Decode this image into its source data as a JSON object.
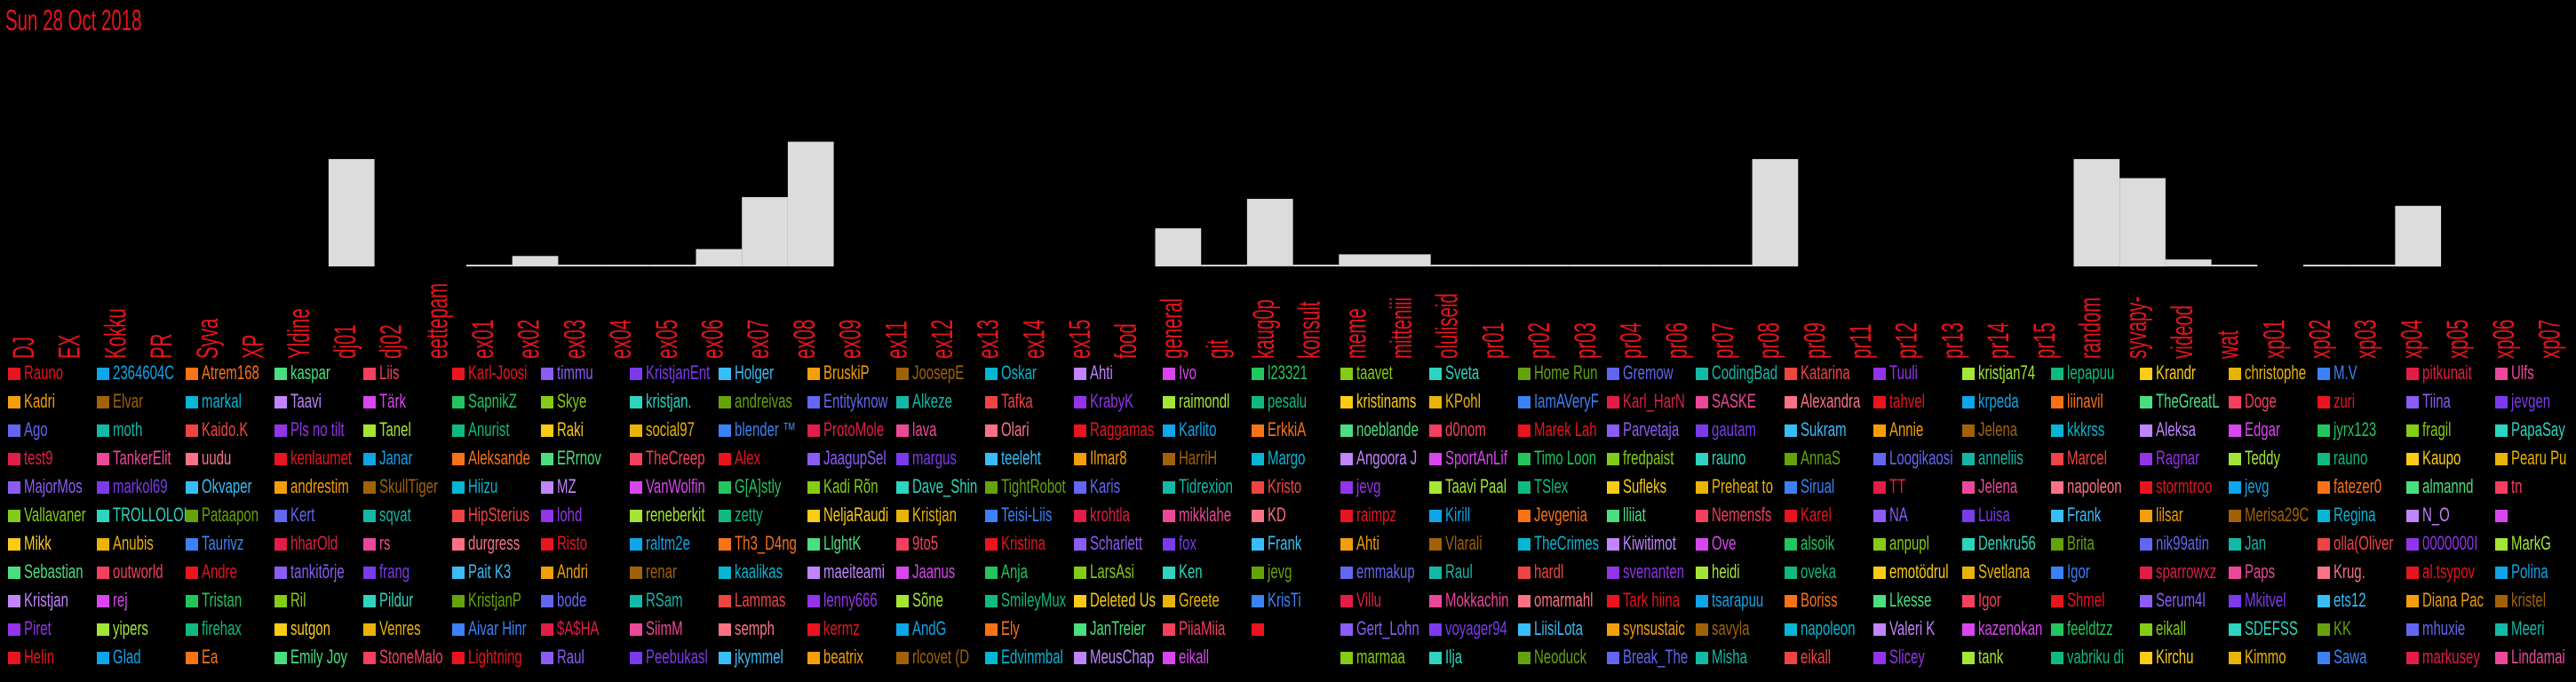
{
  "date_label": "Sun 28 Oct 2018",
  "chart_data": {
    "type": "bar",
    "title": "Sun 28 Oct 2018",
    "xlabel": "",
    "ylabel": "",
    "ylim": [
      0,
      100
    ],
    "grid": false,
    "categories": [
      "DJ",
      "EX",
      "Kokku",
      "PR",
      "Syva",
      "XP",
      "Yldine",
      "dj01",
      "dj02",
      "eettepam",
      "ex01",
      "ex02",
      "ex03",
      "ex04",
      "ex05",
      "ex06",
      "ex07",
      "ex08",
      "ex09",
      "ex11",
      "ex12",
      "ex13",
      "ex14",
      "ex15",
      "food",
      "general",
      "git",
      "kaug0p",
      "konsult",
      "meme",
      "mitteniii",
      "oluliseid",
      "pr01",
      "pr02",
      "pr03",
      "pr04",
      "pr06",
      "pr07",
      "pr08",
      "pr09",
      "pr11",
      "pr12",
      "pr13",
      "pr14",
      "pr15",
      "random",
      "syvapy-",
      "videod",
      "wat",
      "xp01",
      "xp02",
      "xp03",
      "xp04",
      "xp05",
      "xp06",
      "xp07"
    ],
    "values": [
      0,
      0,
      0,
      0,
      0,
      0,
      0,
      62,
      0,
      0,
      1,
      6,
      1,
      1,
      1,
      10,
      40,
      72,
      0,
      0,
      0,
      0,
      0,
      0,
      0,
      22,
      1,
      39,
      1,
      7,
      7,
      1,
      1,
      1,
      1,
      1,
      1,
      1,
      62,
      0,
      0,
      0,
      0,
      0,
      0,
      62,
      51,
      4,
      1,
      0,
      1,
      1,
      35,
      0,
      0,
      0
    ]
  },
  "legend": {
    "colors": [
      "#e8141e",
      "#d946ef",
      "#3b82f6",
      "#f59e0b",
      "#a3e635",
      "#e8141e",
      "#6366f1",
      "#0ea5e9",
      "#22c55e",
      "#e11d48",
      "#a16207",
      "#10b981",
      "#8b5cf6",
      "#14b8a6",
      "#f97316",
      "#84cc16",
      "#ec4899",
      "#06b6d4",
      "#facc15",
      "#7c3aed",
      "#ef4444",
      "#4ade80",
      "#2dd4bf",
      "#fb7185",
      "#c084fc",
      "#eab308",
      "#38bdf8",
      "#9333ea",
      "#f43f5e",
      "#65a30d"
    ],
    "columns": [
      [
        "Rauno",
        "Kadri",
        "Ago",
        "test9",
        "MajorMos",
        "Vallavaner",
        "Mikk",
        "Sebastian",
        "Kristjan",
        "Piret",
        "Helin"
      ],
      [
        "2364604C",
        "Elvar",
        "moth",
        "TankerElit",
        "markol69",
        "TROLLOLOL",
        "Anubis",
        "outworld",
        "rej",
        "yipers",
        "Glad"
      ],
      [
        "Atrem168",
        "markal",
        "Kaido.K",
        "uudu",
        "Okvaper",
        "Pataapon",
        "Taurivz",
        "Andre",
        "Tristan",
        "firehax",
        "Ea"
      ],
      [
        "kaspar",
        "Taavi",
        "Pls no tilt",
        "kenlaumet",
        "andrestim",
        "Kert",
        "hharOld",
        "tankitõrje",
        "Ril",
        "sutgon",
        "Emily Joy"
      ],
      [
        "Liis",
        "Tärk",
        "Tanel",
        "Janar",
        "SkullTiger",
        "sqvat",
        "rs",
        "frang",
        "Pildur",
        "Venres",
        "StoneMalo"
      ],
      [
        "Karl-Joosi",
        "SapnikZ",
        "Anurist",
        "Aleksande",
        "Hiizu",
        "HipSterius",
        "durgress",
        "Pait K3",
        "KristjanP",
        "Aivar Hinr",
        "Lightning"
      ],
      [
        "timmu",
        "Skye",
        "Raki",
        "ERrnov",
        "MZ",
        "lohd",
        "Risto",
        "Andri",
        "bode",
        "$A$HA",
        "Raul"
      ],
      [
        "KristjanEnt",
        "kristjan.",
        "social97",
        "TheCreep",
        "VanWolfin",
        "reneberkit",
        "raltm2e",
        "renar",
        "RSam",
        "SiimM",
        "Peebukasl"
      ],
      [
        "Holger",
        "andreivas",
        "blender ™",
        "Alex",
        "G[A]stly",
        "zetty",
        "Th3_D4ng",
        "kaalikas",
        "Lammas",
        "semph",
        "jkymmel"
      ],
      [
        "BruskiP",
        "Entityknow",
        "ProtoMole",
        "JaagupSel",
        "Kadi Rõn",
        "NeljaRaudi",
        "LlghtK",
        "maeiteami",
        "lenny666",
        "kermz",
        "beatrix"
      ],
      [
        "JoosepE",
        "Alkeze",
        "lava",
        "margus",
        "Dave_Shin",
        "Kristjan",
        "9to5",
        "Jaanus",
        "Sõne",
        "AndG",
        "rlcovet (D"
      ],
      [
        "Oskar",
        "Tafka",
        "Olari",
        "teeleht",
        "TightRobot",
        "Teisi-Liis",
        "Kristina",
        "Anja",
        "SmileyMux",
        "Ely",
        "Edvinmbal"
      ],
      [
        "Ahti",
        "KrabyK",
        "Raggamas",
        "Ilmar8",
        "Karis",
        "krohtla",
        "Scharlett",
        "LarsAsi",
        "Deleted Us",
        "JanTreier",
        "MeusChap"
      ],
      [
        "Ivo",
        "raimondl",
        "Karlito",
        "HarriH",
        "Tidrexion",
        "mikklahe",
        "fox",
        "Ken",
        "Greete",
        "PiiaMiia",
        "eikall"
      ],
      [
        "l23321",
        "pesalu",
        "ErkkiA",
        "Margo",
        "Kristo",
        "KD",
        "Frank",
        "jevg",
        "KrisTi",
        ""
      ],
      [
        "taavet",
        "kristinams",
        "noeblande",
        "Angoora J",
        "jevg",
        "raimpz",
        "Ahti",
        "emmakup",
        "Villu",
        "Gert_Lohn",
        "marmaa"
      ],
      [
        "Sveta",
        "KPohl",
        "d0nom",
        "SportAnLif",
        "Taavi Paal",
        "Kirill",
        "Vlarali",
        "Raul",
        "Mokkachin",
        "voyager94",
        "Ilja"
      ],
      [
        "Home Run",
        "IamAVeryF",
        "Marek Lah",
        "Timo Loon",
        "TSlex",
        "Jevgenia",
        "TheCrimes",
        "hardl",
        "omarmahl",
        "LiisiLota",
        "Neoduck"
      ],
      [
        "Gremow",
        "Karl_HarN",
        "Parvetaja",
        "fredpaist",
        "Sufleks",
        "lliiat",
        "Kiwitimot",
        "svenanten",
        "Tark hiina",
        "synsustaic",
        "Break_The"
      ],
      [
        "CodingBad",
        "SASKE",
        "gautam",
        "rauno",
        "Preheat to",
        "Nemensfs",
        "Ove",
        "heidi",
        "tsarapuu",
        "savyla",
        "Misha"
      ],
      [
        "Katarina",
        "Alexandra",
        "Sukram",
        "AnnaS",
        "Sirual",
        "Karel",
        "alsoik",
        "oveka",
        "Boriss",
        "napoleon",
        "eikall"
      ],
      [
        "Tuuli",
        "tahvel",
        "Annie",
        "Loogikaosi",
        "TT",
        "NA",
        "anpupl",
        "emotödrul",
        "Lkesse",
        "Valeri K",
        "Slicey"
      ],
      [
        "kristjan74",
        "krpeda",
        "Jelena",
        "anneliis",
        "Jelena",
        "Luisa",
        "Denkru56",
        "Svetlana",
        "Igor",
        "kazenokan",
        "tank"
      ],
      [
        "lepapuu",
        "liinavil",
        "kkkrss",
        "Marcel",
        "napoleon",
        "Frank",
        "Brita",
        "Igor",
        "Shmel",
        "feeldtzz",
        "vabriku di"
      ],
      [
        "Krandr",
        "TheGreatL",
        "Aleksa",
        "Ragnar",
        "stormtroo",
        "lilsar",
        "nik99atin",
        "sparrowxz",
        "Serum4l",
        "eikall",
        "Kirchu"
      ],
      [
        "christophe",
        "Doge",
        "Edgar",
        "Teddy",
        "jevg",
        "Merisa29C",
        "Jan",
        "Paps",
        "Mkitvel",
        "SDEFSS",
        "Kimmo"
      ],
      [
        "M.V",
        "zuri",
        "jyrx123",
        "rauno",
        "fatezer0",
        "Regina",
        "olla(Oliver",
        "Krug.",
        "ets12",
        "KK",
        "Sawa"
      ],
      [
        "pitkunait",
        "Tiina",
        "fragil",
        "Kaupo",
        "almannd",
        "N_O",
        "0000000I",
        "al.tsypov",
        "Diana Pac",
        "mhuxie",
        "markusey"
      ],
      [
        "Ulfs",
        "jevgen",
        "PapaSay",
        "Pearu Pu",
        "tn",
        "",
        "MarkG",
        "Polina",
        "kristel",
        "Meeri",
        "Lindamai"
      ]
    ]
  }
}
